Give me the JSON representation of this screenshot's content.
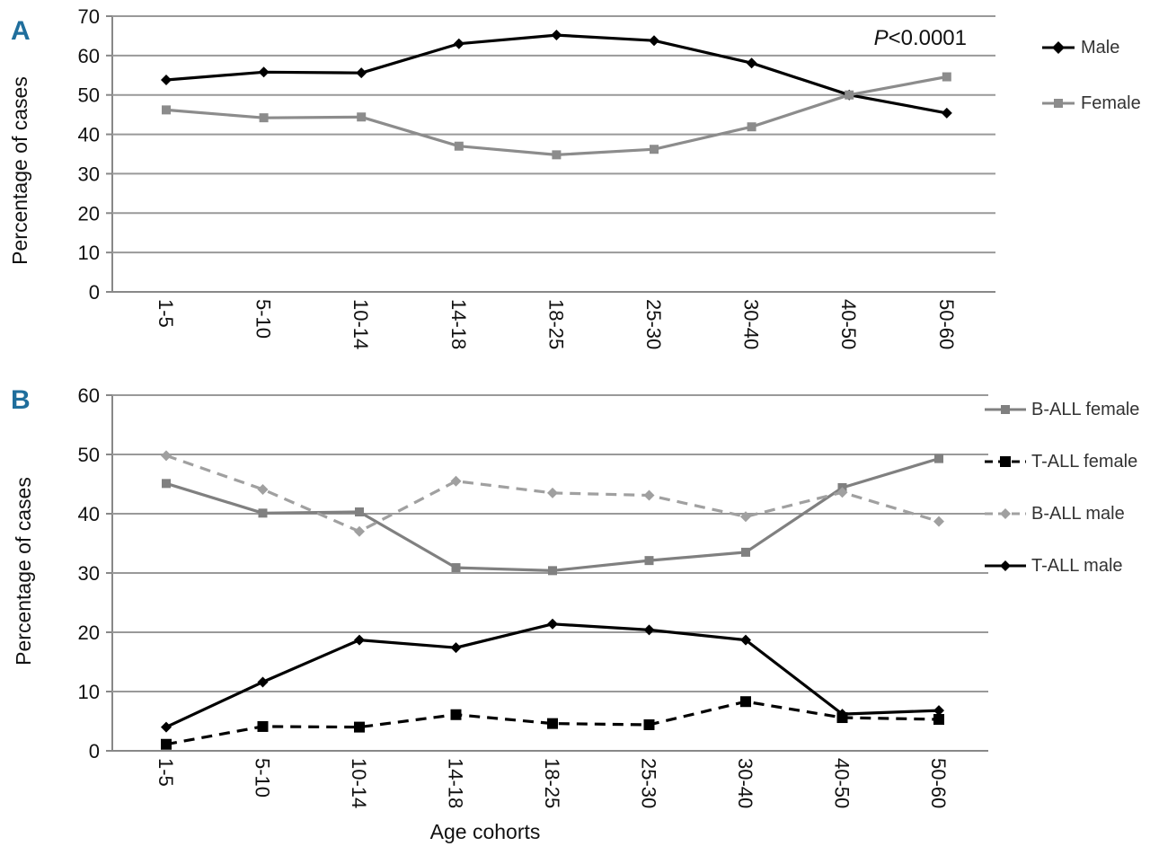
{
  "chart_data": [
    {
      "panel": "A",
      "type": "line",
      "categories": [
        "1-5",
        "5-10",
        "10-14",
        "14-18",
        "18-25",
        "25-30",
        "30-40",
        "40-50",
        "50-60"
      ],
      "ylabel": "Percentage of cases",
      "xlabel": "",
      "ylim": [
        0,
        70
      ],
      "yticks": [
        0,
        10,
        20,
        30,
        40,
        50,
        60,
        70
      ],
      "grid": true,
      "legend_position": "right",
      "annotation": {
        "italic": "P",
        "rest": "<0.0001"
      },
      "series": [
        {
          "name": "Male",
          "values": [
            53.8,
            55.8,
            55.6,
            63,
            65.2,
            63.8,
            58.1,
            50,
            45.4
          ],
          "color": "#000000",
          "marker": "diamond",
          "dash": "solid"
        },
        {
          "name": "Female",
          "values": [
            46.2,
            44.2,
            44.4,
            37,
            34.8,
            36.2,
            41.9,
            50,
            54.6
          ],
          "color": "#8c8c8c",
          "marker": "square",
          "dash": "solid"
        }
      ]
    },
    {
      "panel": "B",
      "type": "line",
      "categories": [
        "1-5",
        "5-10",
        "10-14",
        "14-18",
        "18-25",
        "25-30",
        "30-40",
        "40-50",
        "50-60"
      ],
      "ylabel": "Percentage of cases",
      "xlabel": "Age cohorts",
      "ylim": [
        0,
        60
      ],
      "yticks": [
        0,
        10,
        20,
        30,
        40,
        50,
        60
      ],
      "grid": true,
      "legend_position": "right",
      "series": [
        {
          "name": "B-ALL female",
          "values": [
            45.1,
            40.1,
            40.3,
            30.9,
            30.4,
            32.1,
            33.5,
            44.4,
            49.3
          ],
          "color": "#808080",
          "marker": "square",
          "dash": "solid"
        },
        {
          "name": "T-ALL female",
          "values": [
            1.1,
            4.1,
            4,
            6.1,
            4.6,
            4.4,
            8.3,
            5.6,
            5.3
          ],
          "color": "#000000",
          "marker": "square",
          "dash": "dashed"
        },
        {
          "name": "B-ALL male",
          "values": [
            49.8,
            44.1,
            37,
            45.5,
            43.5,
            43.1,
            39.5,
            43.6,
            38.7
          ],
          "color": "#a0a0a0",
          "marker": "diamond",
          "dash": "dashed"
        },
        {
          "name": "T-ALL male",
          "values": [
            4,
            11.6,
            18.7,
            17.4,
            21.4,
            20.4,
            18.7,
            6.2,
            6.8
          ],
          "color": "#000000",
          "marker": "diamond",
          "dash": "solid"
        }
      ]
    }
  ]
}
